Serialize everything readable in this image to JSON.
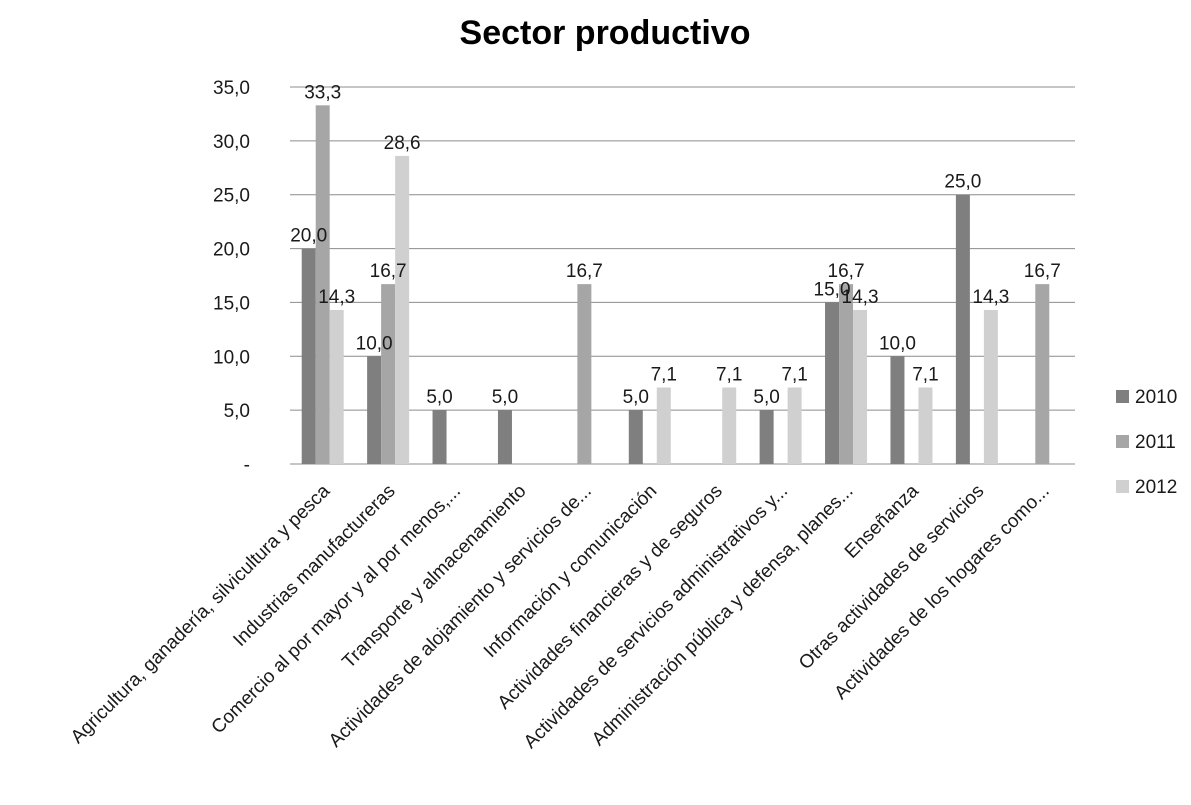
{
  "chart_data": {
    "type": "bar",
    "title": "Sector productivo",
    "xlabel": "",
    "ylabel": "",
    "ylim": [
      0,
      35
    ],
    "yticks": [
      0,
      5,
      10,
      15,
      20,
      25,
      30,
      35
    ],
    "ytick_labels": [
      "-",
      "5,0",
      "10,0",
      "15,0",
      "20,0",
      "25,0",
      "30,0",
      "35,0"
    ],
    "grid": true,
    "legend_position": "right",
    "categories": [
      "Agricultura, ganadería, silvicultura y pesca",
      "Industrias manufactureras",
      "Comercio al por mayor y al por menos,...",
      "Transporte y almacenamiento",
      "Actividades de alojamiento y servicios de...",
      "Información y comunicación",
      "Actividades financieras y de seguros",
      "Actividades de servicios administrativos y...",
      "Administración pública y defensa, planes...",
      "Enseñanza",
      "Otras actividades de servicios",
      "Actividades de los hogares como..."
    ],
    "series": [
      {
        "name": "2010",
        "color": "#7f7f7f",
        "values": [
          20.0,
          10.0,
          5.0,
          5.0,
          null,
          5.0,
          null,
          5.0,
          15.0,
          10.0,
          25.0,
          null
        ],
        "labels": [
          "20,0",
          "10,0",
          "5,0",
          "5,0",
          null,
          "5,0",
          null,
          "5,0",
          "15,0",
          "10,0",
          "25,0",
          null
        ]
      },
      {
        "name": "2011",
        "color": "#a6a6a6",
        "values": [
          33.3,
          16.7,
          null,
          null,
          16.7,
          null,
          null,
          null,
          16.7,
          null,
          null,
          16.7
        ],
        "labels": [
          "33,3",
          "16,7",
          null,
          null,
          "16,7",
          null,
          null,
          null,
          "16,7",
          null,
          null,
          "16,7"
        ]
      },
      {
        "name": "2012",
        "color": "#d0d0d0",
        "values": [
          14.3,
          28.6,
          null,
          null,
          null,
          7.1,
          7.1,
          7.1,
          14.3,
          7.1,
          14.3,
          null
        ],
        "labels": [
          "14,3",
          "28,6",
          null,
          null,
          null,
          "7,1",
          "7,1",
          "7,1",
          "14,3",
          "7,1",
          "14,3",
          null
        ]
      }
    ]
  },
  "colors": {
    "gridline": "#8c8c8c",
    "axis": "#8c8c8c"
  }
}
